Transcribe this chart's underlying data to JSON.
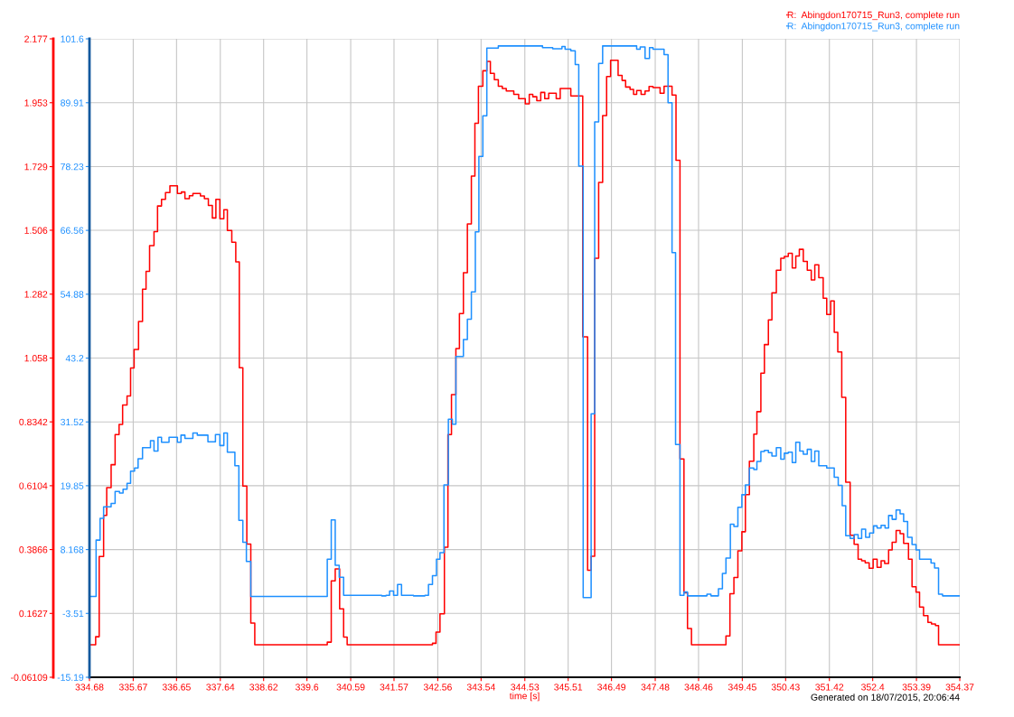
{
  "chart_data": {
    "type": "step",
    "xlabel": "time [s]",
    "annotations": [
      "Generated on 18/07/2015, 20:06:44"
    ],
    "xlim": [
      334.68,
      354.37
    ],
    "xticks": [
      334.68,
      335.67,
      336.65,
      337.64,
      338.62,
      339.6,
      340.59,
      341.57,
      342.56,
      343.54,
      344.53,
      345.51,
      346.49,
      347.48,
      348.46,
      349.45,
      350.43,
      351.42,
      352.4,
      353.39,
      354.37
    ],
    "ylim": [
      -0.06109,
      2.177
    ],
    "yticks": [
      -0.06109,
      0.1627,
      0.3866,
      0.6104,
      0.8342,
      1.058,
      1.282,
      1.506,
      1.729,
      1.953,
      2.177
    ],
    "y2lim": [
      -15.19,
      101.6
    ],
    "y2ticks": [
      -15.19,
      -3.51,
      8.168,
      19.85,
      31.52,
      43.2,
      54.88,
      66.56,
      78.23,
      89.91,
      101.6
    ],
    "grid": true,
    "legend": "top right",
    "series": [
      {
        "name": "R:  Abingdon170715_Run3, complete run",
        "color": "#ff0000",
        "x": [
          334.68,
          334.82,
          334.9,
          335.0,
          335.07,
          335.17,
          335.26,
          335.35,
          335.43,
          335.53,
          335.61,
          335.69,
          335.79,
          335.88,
          335.96,
          336.04,
          336.14,
          336.22,
          336.31,
          336.4,
          336.5,
          336.67,
          336.76,
          336.84,
          336.94,
          337.02,
          337.19,
          337.28,
          337.37,
          337.46,
          337.54,
          337.63,
          337.72,
          337.8,
          337.9,
          337.99,
          338.07,
          338.15,
          338.24,
          338.33,
          338.42,
          340.06,
          340.15,
          340.24,
          340.34,
          340.43,
          340.51,
          342.44,
          342.52,
          342.61,
          342.71,
          342.79,
          342.87,
          342.97,
          343.05,
          343.14,
          343.23,
          343.32,
          343.4,
          343.48,
          343.58,
          343.67,
          343.75,
          343.84,
          343.93,
          344.02,
          344.11,
          344.28,
          344.39,
          344.54,
          344.63,
          344.71,
          344.8,
          344.89,
          344.98,
          345.07,
          345.24,
          345.33,
          345.57,
          345.84,
          345.95,
          346.03,
          346.11,
          346.2,
          346.29,
          346.38,
          346.47,
          346.64,
          346.73,
          346.81,
          346.91,
          346.99,
          347.06,
          347.16,
          347.25,
          347.34,
          347.43,
          347.59,
          347.68,
          347.86,
          347.95,
          348.04,
          348.13,
          348.21,
          348.3,
          349.08,
          349.17,
          349.26,
          349.35,
          349.44,
          349.52,
          349.61,
          349.71,
          349.78,
          349.87,
          349.95,
          350.04,
          350.12,
          350.22,
          350.32,
          350.4,
          350.49,
          350.58,
          350.66,
          350.74,
          350.83,
          350.92,
          351.01,
          351.09,
          351.18,
          351.28,
          351.36,
          351.45,
          351.53,
          351.61,
          351.7,
          351.79,
          351.89,
          351.98,
          352.07,
          352.15,
          352.23,
          352.32,
          352.41,
          352.5,
          352.59,
          352.67,
          352.76,
          352.84,
          352.93,
          353.02,
          353.1,
          353.21,
          353.29,
          353.38,
          353.46,
          353.55,
          353.65,
          353.73,
          353.82,
          353.89,
          354.37
        ],
        "values": [
          0.053,
          0.081,
          0.362,
          0.506,
          0.604,
          0.684,
          0.79,
          0.825,
          0.893,
          0.925,
          1.023,
          1.088,
          1.186,
          1.299,
          1.362,
          1.452,
          1.501,
          1.591,
          1.614,
          1.638,
          1.662,
          1.635,
          1.64,
          1.617,
          1.627,
          1.635,
          1.626,
          1.617,
          1.593,
          1.549,
          1.614,
          1.546,
          1.578,
          1.505,
          1.464,
          1.395,
          1.024,
          0.609,
          0.406,
          0.129,
          0.053,
          0.062,
          0.277,
          0.319,
          0.179,
          0.08,
          0.053,
          0.058,
          0.097,
          0.161,
          0.395,
          0.79,
          0.93,
          1.091,
          1.214,
          1.357,
          1.528,
          1.696,
          1.881,
          2.011,
          2.065,
          2.098,
          2.056,
          2.034,
          2.011,
          2.003,
          1.994,
          1.982,
          1.967,
          1.949,
          1.982,
          1.974,
          1.96,
          1.989,
          1.967,
          1.986,
          1.967,
          2.003,
          1.977,
          1.132,
          0.314,
          0.363,
          1.408,
          1.674,
          1.908,
          2.045,
          2.102,
          2.049,
          2.031,
          2.008,
          2.0,
          1.982,
          1.996,
          1.982,
          1.994,
          2.01,
          2.006,
          1.986,
          2.011,
          1.98,
          1.751,
          0.704,
          0.235,
          0.11,
          0.053,
          0.084,
          0.232,
          0.289,
          0.382,
          0.449,
          0.579,
          0.696,
          0.791,
          0.87,
          1.005,
          1.105,
          1.192,
          1.287,
          1.366,
          1.408,
          1.414,
          1.425,
          1.374,
          1.416,
          1.439,
          1.397,
          1.366,
          1.332,
          1.385,
          1.34,
          1.268,
          1.211,
          1.258,
          1.148,
          1.079,
          0.92,
          0.623,
          0.437,
          0.405,
          0.353,
          0.347,
          0.34,
          0.321,
          0.353,
          0.324,
          0.347,
          0.338,
          0.385,
          0.412,
          0.453,
          0.442,
          0.408,
          0.353,
          0.256,
          0.237,
          0.185,
          0.155,
          0.131,
          0.126,
          0.12,
          0.053,
          0.053
        ]
      },
      {
        "name": "R:  Abingdon170715_Run3, complete run",
        "color": "#1e90ff",
        "axis": "y2",
        "x": [
          334.68,
          334.83,
          334.92,
          335.0,
          335.17,
          335.26,
          335.36,
          335.44,
          335.53,
          335.61,
          335.7,
          335.78,
          335.88,
          336.06,
          336.14,
          336.23,
          336.31,
          336.48,
          336.67,
          336.75,
          336.84,
          337.02,
          337.12,
          337.36,
          337.53,
          337.63,
          337.72,
          337.8,
          337.97,
          338.06,
          338.15,
          338.23,
          338.33,
          339.98,
          340.06,
          340.15,
          340.24,
          340.33,
          340.43,
          341.29,
          341.39,
          341.47,
          341.56,
          341.65,
          341.74,
          342.01,
          342.27,
          342.35,
          342.44,
          342.53,
          342.61,
          342.7,
          342.8,
          342.89,
          342.97,
          343.14,
          343.23,
          343.32,
          343.41,
          343.49,
          343.58,
          343.67,
          343.93,
          344.93,
          345.16,
          345.37,
          345.44,
          345.57,
          345.67,
          345.75,
          345.85,
          346.03,
          346.11,
          346.2,
          346.29,
          347.06,
          347.14,
          347.25,
          347.35,
          347.43,
          347.68,
          347.77,
          347.86,
          347.94,
          348.04,
          348.13,
          348.21,
          348.65,
          348.74,
          348.91,
          349.0,
          349.08,
          349.18,
          349.26,
          349.35,
          349.44,
          349.52,
          349.61,
          349.71,
          349.78,
          349.87,
          349.95,
          350.04,
          350.12,
          350.22,
          350.32,
          350.4,
          350.49,
          350.58,
          350.66,
          350.75,
          350.83,
          350.92,
          351.01,
          351.09,
          351.18,
          351.36,
          351.53,
          351.62,
          351.71,
          351.79,
          351.89,
          351.98,
          352.07,
          352.15,
          352.24,
          352.33,
          352.42,
          352.5,
          352.59,
          352.68,
          352.76,
          352.84,
          352.93,
          353.02,
          353.1,
          353.19,
          353.29,
          353.38,
          353.46,
          353.72,
          353.8,
          353.89,
          353.98,
          354.37
        ],
        "values": [
          -0.4,
          9.9,
          13.9,
          16.0,
          16.6,
          18.8,
          18.5,
          19.2,
          20.3,
          22.5,
          23.1,
          24.8,
          26.8,
          28.1,
          26.2,
          28.7,
          27.8,
          28.7,
          27.8,
          29.1,
          28.5,
          29.5,
          29.1,
          27.9,
          29.2,
          27.2,
          29.5,
          26.0,
          23.5,
          13.5,
          9.5,
          6.0,
          -0.4,
          -0.4,
          6.4,
          13.6,
          5.3,
          3.1,
          -0.2,
          -0.3,
          -0.2,
          0.6,
          -0.2,
          1.8,
          -0.2,
          -0.3,
          -0.2,
          1.8,
          3.4,
          6.4,
          7.6,
          20.0,
          32.0,
          31.1,
          43.5,
          46.6,
          50.3,
          55.3,
          66.3,
          80.1,
          87.5,
          99.9,
          100.3,
          100.0,
          99.8,
          100.2,
          99.7,
          99.4,
          96.9,
          78.3,
          -0.6,
          33.0,
          86.4,
          97.1,
          100.3,
          99.7,
          100.1,
          98.0,
          100.0,
          99.7,
          98.7,
          89.9,
          62.5,
          27.4,
          -0.2,
          0.4,
          -0.3,
          0.0,
          -0.3,
          1.0,
          3.8,
          6.6,
          12.8,
          12.4,
          15.9,
          18.2,
          20.0,
          23.1,
          22.8,
          24.3,
          26.1,
          26.3,
          25.9,
          25.3,
          26.8,
          24.7,
          25.8,
          26.0,
          24.1,
          27.8,
          26.2,
          25.6,
          26.5,
          24.3,
          26.2,
          23.5,
          23.1,
          21.4,
          19.9,
          16.2,
          10.7,
          10.2,
          10.9,
          10.2,
          11.9,
          10.4,
          11.2,
          12.5,
          12.1,
          12.6,
          12.1,
          14.4,
          13.7,
          15.4,
          14.7,
          13.3,
          10.4,
          9.1,
          8.1,
          6.4,
          5.7,
          4.8,
          0.0,
          -0.3,
          -0.3
        ]
      }
    ]
  }
}
